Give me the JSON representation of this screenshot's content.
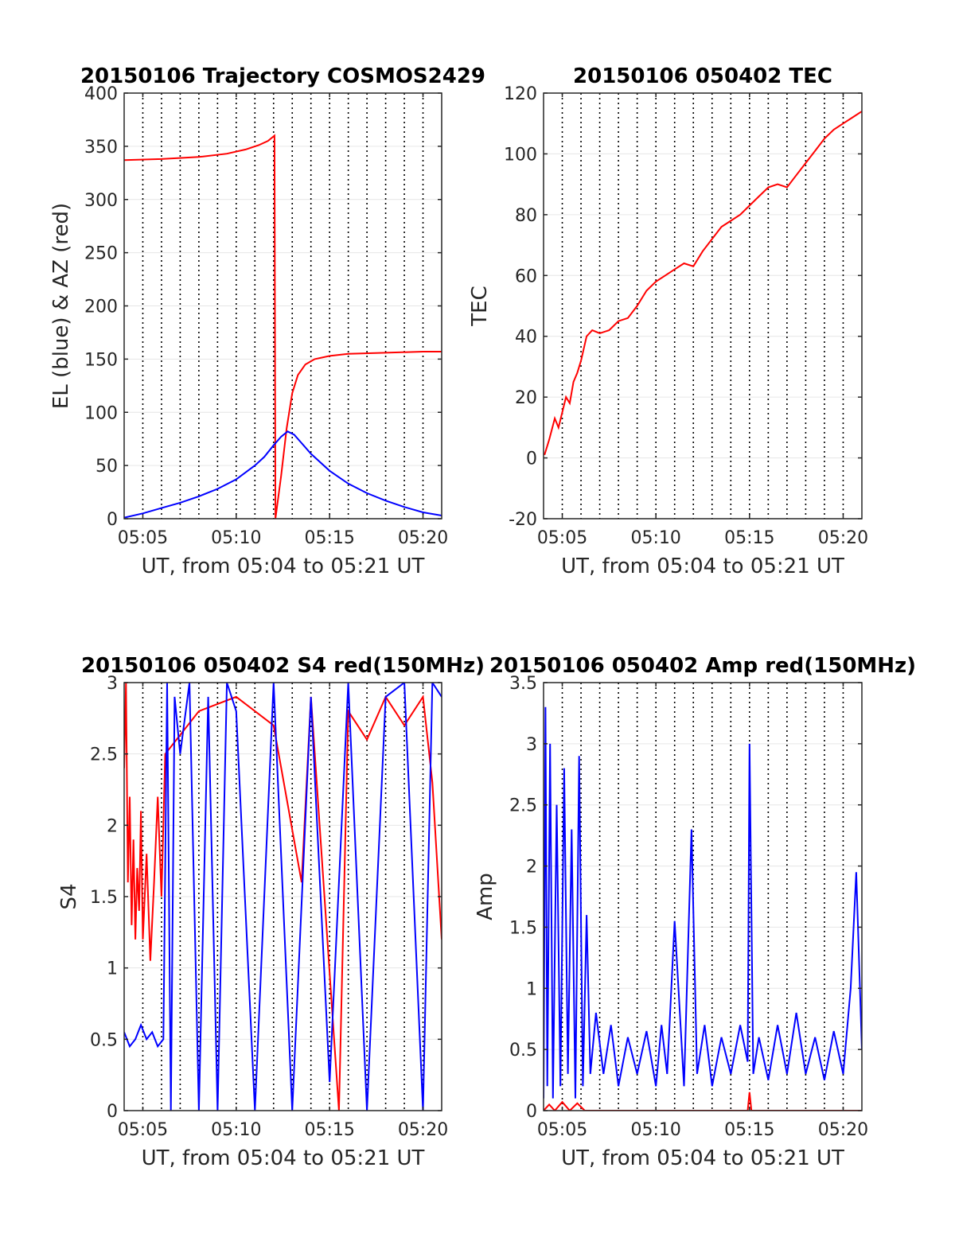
{
  "chart_data": [
    {
      "id": "traj",
      "type": "line",
      "title": "20150106 Trajectory COSMOS2429",
      "xlabel": "UT, from 05:04 to 05:21 UT",
      "ylabel": "EL (blue) & AZ (red)",
      "xlim": [
        4.0,
        21.0
      ],
      "ylim": [
        0,
        400
      ],
      "xticks": [
        5,
        10,
        15,
        20
      ],
      "xtick_labels": [
        "05:05",
        "05:10",
        "05:15",
        "05:20"
      ],
      "yticks": [
        0,
        50,
        100,
        150,
        200,
        250,
        300,
        350,
        400
      ],
      "ytick_labels": [
        "0",
        "50",
        "100",
        "150",
        "200",
        "250",
        "300",
        "350",
        "400"
      ],
      "grid": true,
      "minute_gridlines": [
        5,
        6,
        7,
        8,
        9,
        10,
        11,
        12,
        13,
        14,
        15,
        16,
        17,
        18,
        19,
        20
      ],
      "series": [
        {
          "color": "#ff0000",
          "x": [
            4.0,
            6.0,
            8.0,
            9.5,
            10.5,
            11.2,
            11.7,
            12.05,
            12.1,
            12.4,
            12.7,
            13.0,
            13.3,
            13.7,
            14.2,
            15.0,
            16.0,
            18.0,
            20.0,
            21.0
          ],
          "y": [
            337,
            338,
            340,
            343,
            347,
            351,
            355,
            360,
            0,
            40,
            85,
            118,
            135,
            145,
            150,
            153,
            155,
            156,
            157,
            157
          ]
        },
        {
          "color": "#0000ff",
          "x": [
            4.0,
            5.0,
            6.0,
            7.0,
            8.0,
            9.0,
            10.0,
            11.0,
            11.5,
            12.0,
            12.4,
            12.75,
            13.1,
            13.5,
            14.0,
            15.0,
            16.0,
            17.0,
            18.0,
            19.0,
            20.0,
            21.0
          ],
          "y": [
            1,
            5,
            10,
            15,
            21,
            28,
            37,
            50,
            58,
            69,
            77,
            82,
            79,
            71,
            61,
            45,
            33,
            24,
            17,
            11,
            6,
            3
          ]
        }
      ]
    },
    {
      "id": "tec",
      "type": "line",
      "title": "20150106 050402 TEC",
      "xlabel": "UT, from 05:04 to 05:21 UT",
      "ylabel": "TEC",
      "xlim": [
        4.0,
        21.0
      ],
      "ylim": [
        -20,
        120
      ],
      "xticks": [
        5,
        10,
        15,
        20
      ],
      "xtick_labels": [
        "05:05",
        "05:10",
        "05:15",
        "05:20"
      ],
      "yticks": [
        -20,
        0,
        20,
        40,
        60,
        80,
        100,
        120
      ],
      "ytick_labels": [
        "-20",
        "0",
        "20",
        "40",
        "60",
        "80",
        "100",
        "120"
      ],
      "grid": true,
      "minute_gridlines": [
        5,
        6,
        7,
        8,
        9,
        10,
        11,
        12,
        13,
        14,
        15,
        16,
        17,
        18,
        19,
        20
      ],
      "series": [
        {
          "color": "#ff0000",
          "x": [
            4.05,
            4.3,
            4.6,
            4.8,
            5.0,
            5.2,
            5.4,
            5.6,
            5.8,
            6.0,
            6.3,
            6.6,
            7.0,
            7.5,
            8.0,
            8.5,
            9.0,
            9.5,
            10.0,
            10.5,
            11.0,
            11.5,
            12.0,
            12.5,
            13.0,
            13.5,
            14.0,
            14.5,
            15.0,
            15.5,
            16.0,
            16.5,
            17.0,
            17.5,
            18.0,
            18.5,
            19.0,
            19.5,
            20.0,
            20.5,
            21.0
          ],
          "y": [
            1,
            6,
            13,
            10,
            15,
            20,
            18,
            25,
            28,
            32,
            40,
            42,
            41,
            42,
            45,
            46,
            50,
            55,
            58,
            60,
            62,
            64,
            63,
            68,
            72,
            76,
            78,
            80,
            83,
            86,
            89,
            90,
            89,
            93,
            97,
            101,
            105,
            108,
            110,
            112,
            114
          ]
        }
      ]
    },
    {
      "id": "s4",
      "type": "line",
      "title": "20150106 050402 S4 red(150MHz)",
      "xlabel": "UT, from 05:04 to 05:21 UT",
      "ylabel": "S4",
      "xlim": [
        4.0,
        21.0
      ],
      "ylim": [
        0,
        3
      ],
      "xticks": [
        5,
        10,
        15,
        20
      ],
      "xtick_labels": [
        "05:05",
        "05:10",
        "05:15",
        "05:20"
      ],
      "yticks": [
        0,
        0.5,
        1,
        1.5,
        2,
        2.5,
        3
      ],
      "ytick_labels": [
        "0",
        "0.5",
        "1",
        "1.5",
        "2",
        "2.5",
        "3"
      ],
      "grid": true,
      "minute_gridlines": [
        5,
        6,
        7,
        8,
        9,
        10,
        11,
        12,
        13,
        14,
        15,
        16,
        17,
        18,
        19,
        20
      ],
      "series": [
        {
          "color": "#ff0000",
          "x": [
            4.0,
            4.1,
            4.2,
            4.3,
            4.4,
            4.5,
            4.6,
            4.7,
            4.8,
            4.9,
            5.0,
            5.2,
            5.4,
            5.6,
            5.8,
            6.0,
            6.2,
            8.0,
            10.0,
            12.0,
            13.5,
            14.0,
            15.5,
            16.0,
            17.0,
            18.0,
            19.0,
            20.0,
            20.5,
            21.0
          ],
          "y": [
            2.4,
            3.0,
            1.6,
            2.2,
            1.3,
            1.9,
            1.2,
            1.7,
            1.4,
            2.1,
            1.2,
            1.8,
            1.05,
            1.6,
            2.2,
            1.5,
            2.5,
            2.8,
            2.9,
            2.7,
            1.6,
            2.9,
            0.0,
            2.8,
            2.6,
            2.9,
            2.7,
            2.9,
            2.3,
            1.2
          ]
        },
        {
          "color": "#0000ff",
          "x": [
            4.0,
            4.3,
            4.6,
            4.9,
            5.2,
            5.5,
            5.8,
            6.1,
            6.3,
            6.5,
            6.7,
            7.0,
            7.5,
            8.0,
            8.5,
            9.0,
            9.5,
            10.0,
            11.0,
            12.0,
            13.0,
            14.0,
            15.0,
            16.0,
            17.0,
            18.0,
            19.0,
            20.0,
            20.5,
            21.0
          ],
          "y": [
            0.55,
            0.45,
            0.5,
            0.6,
            0.5,
            0.55,
            0.45,
            0.5,
            3.0,
            0.0,
            2.9,
            2.5,
            3.0,
            0.0,
            2.9,
            0.0,
            3.0,
            2.8,
            0.0,
            3.0,
            0.0,
            2.9,
            0.2,
            3.0,
            0.0,
            2.9,
            3.0,
            0.0,
            3.0,
            2.9
          ]
        }
      ]
    },
    {
      "id": "amp",
      "type": "line",
      "title": "20150106 050402 Amp red(150MHz)",
      "xlabel": "UT, from 05:04 to 05:21 UT",
      "ylabel": "Amp",
      "xlim": [
        4.0,
        21.0
      ],
      "ylim": [
        0,
        3.5
      ],
      "xticks": [
        5,
        10,
        15,
        20
      ],
      "xtick_labels": [
        "05:05",
        "05:10",
        "05:15",
        "05:20"
      ],
      "yticks": [
        0,
        0.5,
        1,
        1.5,
        2,
        2.5,
        3,
        3.5
      ],
      "ytick_labels": [
        "0",
        "0.5",
        "1",
        "1.5",
        "2",
        "2.5",
        "3",
        "3.5"
      ],
      "grid": true,
      "minute_gridlines": [
        5,
        6,
        7,
        8,
        9,
        10,
        11,
        12,
        13,
        14,
        15,
        16,
        17,
        18,
        19,
        20
      ],
      "series": [
        {
          "color": "#0000ff",
          "x": [
            4.0,
            4.1,
            4.2,
            4.35,
            4.5,
            4.7,
            4.9,
            5.1,
            5.3,
            5.5,
            5.7,
            5.9,
            6.1,
            6.3,
            6.5,
            6.8,
            7.2,
            7.6,
            8.0,
            8.5,
            9.0,
            9.5,
            10.0,
            10.3,
            10.6,
            11.0,
            11.5,
            11.9,
            12.2,
            12.6,
            13.0,
            13.5,
            14.0,
            14.5,
            14.9,
            15.0,
            15.2,
            15.5,
            16.0,
            16.5,
            17.0,
            17.5,
            18.0,
            18.5,
            19.0,
            19.5,
            20.0,
            20.4,
            20.7,
            21.0
          ],
          "y": [
            0.1,
            3.3,
            0.2,
            3.0,
            0.1,
            2.5,
            0.2,
            2.8,
            0.3,
            2.3,
            0.1,
            2.9,
            0.2,
            1.6,
            0.3,
            0.8,
            0.3,
            0.7,
            0.2,
            0.6,
            0.3,
            0.65,
            0.2,
            0.7,
            0.3,
            1.55,
            0.2,
            2.3,
            0.3,
            0.7,
            0.2,
            0.6,
            0.3,
            0.7,
            0.4,
            3.0,
            0.3,
            0.6,
            0.25,
            0.7,
            0.3,
            0.8,
            0.3,
            0.6,
            0.25,
            0.65,
            0.3,
            1.0,
            1.95,
            0.5
          ]
        },
        {
          "color": "#ff0000",
          "x": [
            4.0,
            4.3,
            4.6,
            5.0,
            5.4,
            5.8,
            6.2,
            8.0,
            12.0,
            14.9,
            15.0,
            15.1,
            18.0,
            21.0
          ],
          "y": [
            0.0,
            0.05,
            0.0,
            0.07,
            0.0,
            0.06,
            0.0,
            0.0,
            0.0,
            0.0,
            0.15,
            0.0,
            0.0,
            0.0
          ]
        }
      ]
    }
  ]
}
